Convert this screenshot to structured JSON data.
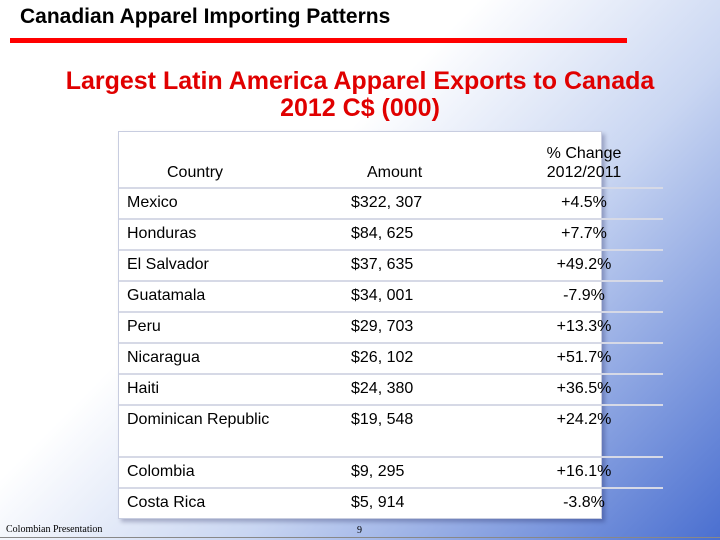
{
  "slide": {
    "title": "Canadian Apparel Importing Patterns",
    "subtitle_line1": "Largest Latin America Apparel Exports to Canada",
    "subtitle_line2": "2012 C$ (000)",
    "accent_color": "#ff0000",
    "subtitle_color": "#e00000"
  },
  "table": {
    "headers": {
      "country": "Country",
      "amount": "Amount",
      "change_line1": "% Change",
      "change_line2": "2012/2011"
    },
    "rows": [
      {
        "country": "Mexico",
        "amount": "$322, 307",
        "change": "+4.5%"
      },
      {
        "country": "Honduras",
        "amount": "$84, 625",
        "change": "+7.7%"
      },
      {
        "country": "El Salvador",
        "amount": "$37, 635",
        "change": "+49.2%"
      },
      {
        "country": "Guatamala",
        "amount": "$34, 001",
        "change": "-7.9%"
      },
      {
        "country": "Peru",
        "amount": "$29, 703",
        "change": "+13.3%"
      },
      {
        "country": "Nicaragua",
        "amount": "$26, 102",
        "change": "+51.7%"
      },
      {
        "country": "Haiti",
        "amount": "$24, 380",
        "change": "+36.5%"
      },
      {
        "country": "Dominican Republic",
        "amount": "$19, 548",
        "change": "+24.2%"
      },
      {
        "country": "Colombia",
        "amount": "$9, 295",
        "change": "+16.1%"
      },
      {
        "country": "Costa Rica",
        "amount": "$5, 914",
        "change": "-3.8%"
      }
    ]
  },
  "footer": {
    "left_text": "Colombian Presentation",
    "page_number": "9"
  }
}
